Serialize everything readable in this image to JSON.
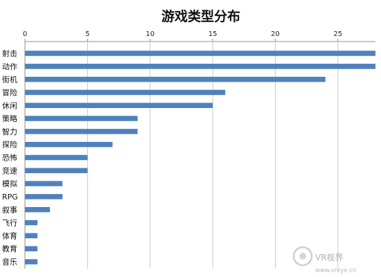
{
  "chart_data": {
    "type": "bar",
    "orientation": "horizontal",
    "title": "游戏类型分布",
    "xlabel": "",
    "ylabel": "",
    "x_axis_position": "top",
    "xlim": [
      0,
      28
    ],
    "xticks": [
      0,
      5,
      10,
      15,
      20,
      25
    ],
    "grid": "vertical",
    "bar_color": "#4F81BD",
    "grid_color": "#c8c8c8",
    "categories": [
      "射击",
      "动作",
      "街机",
      "冒险",
      "休闲",
      "策略",
      "智力",
      "探险",
      "恐怖",
      "竞速",
      "模拟",
      "RPG",
      "叙事",
      "飞行",
      "体育",
      "教育",
      "音乐"
    ],
    "values": [
      28,
      28,
      24,
      16,
      15,
      9,
      9,
      7,
      5,
      5,
      3,
      3,
      2,
      1,
      1,
      1,
      1
    ]
  },
  "watermark": {
    "logo_text": "VR视界",
    "url": "www.vreye.cn"
  }
}
